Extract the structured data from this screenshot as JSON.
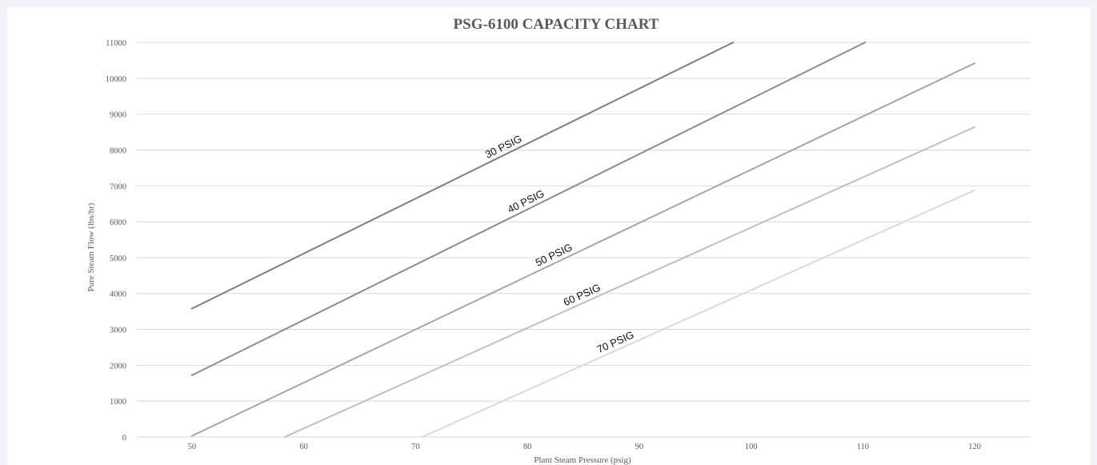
{
  "chart_data": {
    "type": "line",
    "title": "PSG-6100 CAPACITY CHART",
    "xlabel": "Plant Steam Pressure (psig)",
    "ylabel": "Pure Steam Flow (lbs/hr)",
    "xlim": [
      45,
      125
    ],
    "ylim": [
      0,
      11000
    ],
    "xticks": [
      50,
      60,
      70,
      80,
      90,
      100,
      110,
      120
    ],
    "yticks": [
      0,
      1000,
      2000,
      3000,
      4000,
      5000,
      6000,
      7000,
      8000,
      9000,
      10000,
      11000
    ],
    "grid": "horizontal",
    "colors": {
      "grid": "#d9d9d9",
      "text": "#595959",
      "series": [
        "#7f7f7f",
        "#8c8c8c",
        "#a6a6a6",
        "#bfbfbf",
        "#d9d9d9"
      ]
    },
    "series": [
      {
        "name": "30 PSIG",
        "points": [
          [
            50,
            3580
          ],
          [
            98.4,
            11000
          ]
        ],
        "label_at": 78
      },
      {
        "name": "40 PSIG",
        "points": [
          [
            50,
            1720
          ],
          [
            110.2,
            11000
          ]
        ],
        "label_at": 80
      },
      {
        "name": "50 PSIG",
        "points": [
          [
            50,
            30
          ],
          [
            120,
            10420
          ]
        ],
        "label_at": 82.5
      },
      {
        "name": "60 PSIG",
        "points": [
          [
            58.3,
            0
          ],
          [
            120,
            8640
          ]
        ],
        "label_at": 85
      },
      {
        "name": "70 PSIG",
        "points": [
          [
            70.6,
            0
          ],
          [
            120,
            6880
          ]
        ],
        "label_at": 88
      }
    ]
  }
}
